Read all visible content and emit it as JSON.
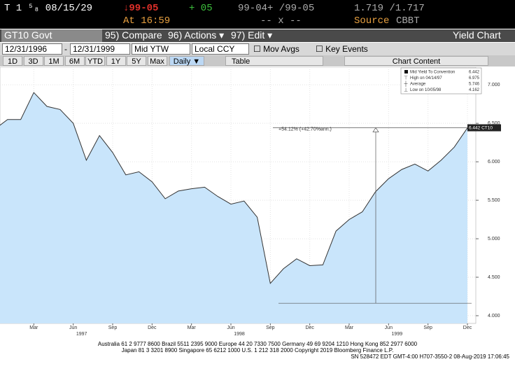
{
  "header": {
    "security": "T 1 ⁵₈ 08/15/29",
    "last": "↓99-05",
    "change": "+ 05",
    "bid_ask": "99-04+ /99-05",
    "yields": "1.719 /1.717",
    "time": "At 16:59",
    "size": "-- x --",
    "source_label": "Source",
    "source": "CBBT"
  },
  "toolbar": {
    "ticker": "GT10 Govt",
    "compare": "95) Compare",
    "actions": "96) Actions ▾",
    "edit": "97) Edit ▾",
    "title": "Yield Chart"
  },
  "controls": {
    "start_date": "12/31/1996",
    "separator": "-",
    "end_date": "12/31/1999",
    "field": "Mid YTW",
    "currency": "Local CCY",
    "options": [
      "Mov Avgs",
      "Key Events"
    ]
  },
  "periods": [
    "1D",
    "3D",
    "1M",
    "6M",
    "YTD",
    "1Y",
    "5Y",
    "Max"
  ],
  "frequency": "Daily ▼",
  "table": "Table",
  "chart_content": "Chart Content",
  "chart_data": {
    "type": "area",
    "x": [
      "1996-12",
      "1997-01",
      "1997-02",
      "1997-03",
      "1997-04",
      "1997-05",
      "1997-06",
      "1997-07",
      "1997-08",
      "1997-09",
      "1997-10",
      "1997-11",
      "1997-12",
      "1998-01",
      "1998-02",
      "1998-03",
      "1998-04",
      "1998-05",
      "1998-06",
      "1998-07",
      "1998-08",
      "1998-09",
      "1998-10",
      "1998-11",
      "1998-12",
      "1999-01",
      "1999-02",
      "1999-03",
      "1999-04",
      "1999-05",
      "1999-06",
      "1999-07",
      "1999-08",
      "1999-09",
      "1999-10",
      "1999-11",
      "1999-12"
    ],
    "series": [
      {
        "name": "Mid Yield To Convention",
        "color": "#333333",
        "fill": "#c9e5fb",
        "values": [
          6.42,
          6.55,
          6.55,
          6.9,
          6.72,
          6.68,
          6.5,
          6.02,
          6.34,
          6.12,
          5.83,
          5.87,
          5.74,
          5.52,
          5.62,
          5.65,
          5.67,
          5.55,
          5.45,
          5.49,
          5.28,
          4.42,
          4.61,
          4.74,
          4.65,
          4.66,
          5.1,
          5.25,
          5.35,
          5.61,
          5.78,
          5.9,
          5.97,
          5.88,
          6.02,
          6.19,
          6.44
        ]
      }
    ],
    "xlim": [
      "1996-12",
      "1999-12"
    ],
    "ylim": [
      3.9,
      7.22
    ],
    "yticks": [
      {
        "value": 4,
        "label": "4.000"
      },
      {
        "value": 4.5,
        "label": "4.500"
      },
      {
        "value": 5,
        "label": "5.000"
      },
      {
        "value": 5.5,
        "label": "5.500"
      },
      {
        "value": 6,
        "label": "6.000"
      },
      {
        "value": 6.5,
        "label": "6.500"
      },
      {
        "value": 7,
        "label": "7.000"
      }
    ],
    "xticks": [
      {
        "value": "1997-03",
        "label": "Mar"
      },
      {
        "value": "1997-06",
        "label": "Jun"
      },
      {
        "value": "1997-09",
        "label": "Sep"
      },
      {
        "value": "1997-12",
        "label": "Dec"
      },
      {
        "value": "1998-03",
        "label": "Mar"
      },
      {
        "value": "1998-06",
        "label": "Jun"
      },
      {
        "value": "1998-09",
        "label": "Sep"
      },
      {
        "value": "1998-12",
        "label": "Dec"
      },
      {
        "value": "1999-03",
        "label": "Mar"
      },
      {
        "value": "1999-06",
        "label": "Jun"
      },
      {
        "value": "1999-09",
        "label": "Sep"
      },
      {
        "value": "1999-12",
        "label": "Dec"
      }
    ],
    "year_ticks": [
      {
        "value": "1997-06",
        "label": "1997"
      },
      {
        "value": "1998-06",
        "label": "1998"
      },
      {
        "value": "1999-06",
        "label": "1999"
      }
    ],
    "grid": true,
    "legend": [
      {
        "label": "Mid Yield To Convention",
        "value": 6.442
      },
      {
        "label": "High on 04/14/97",
        "value": 6.975
      },
      {
        "label": "Average",
        "value": 5.746
      },
      {
        "label": "Low on 10/05/98",
        "value": 4.162
      }
    ],
    "last_value_label": "6.442 CT10",
    "annotation": "+54.12% (+42.70%ann.)"
  },
  "footer": [
    "Australia 61 2 9777 8600 Brazil 5511 2395 9000 Europe 44 20 7330 7500 Germany 49 69 9204 1210 Hong Kong 852 2977 6000",
    "Japan 81 3 3201 8900      Singapore 65 6212 1000      U.S. 1 212 318 2000      Copyright 2019 Bloomberg Finance L.P.",
    "SN 528472 EDT  GMT-4:00 H707-3550-2 08-Aug-2019 17:06:45"
  ]
}
